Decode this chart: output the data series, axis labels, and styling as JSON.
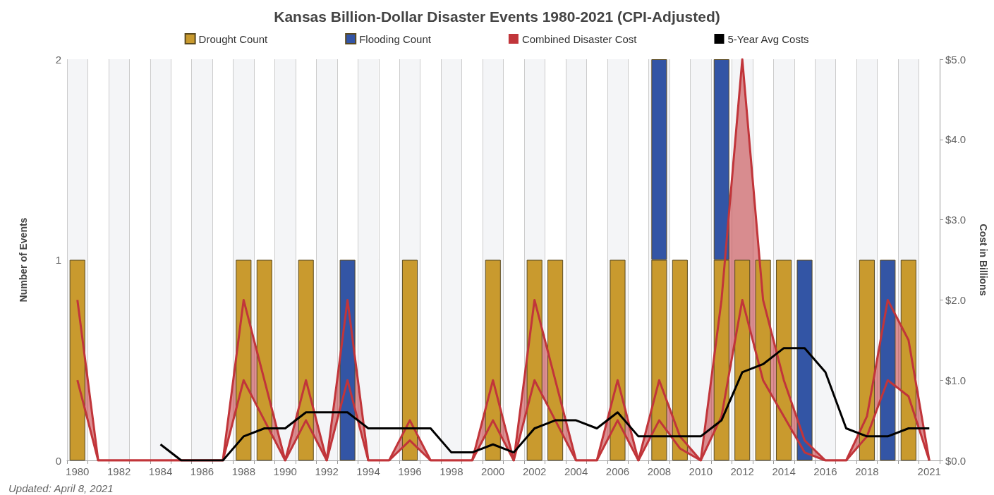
{
  "chart_data": {
    "type": "bar",
    "title": "Kansas Billion-Dollar Disaster Events 1980-2021 (CPI-Adjusted)",
    "ylabel": "Number of Events",
    "y2label": "Cost in Billions",
    "annotations": [
      "Updated: April 8, 2021"
    ],
    "categories": [
      "1980",
      null,
      "1982",
      null,
      "1984",
      null,
      "1986",
      null,
      "1988",
      null,
      "1990",
      null,
      "1992",
      null,
      "1994",
      null,
      "1996",
      null,
      "1998",
      null,
      "2000",
      null,
      "2002",
      null,
      "2004",
      null,
      "2006",
      null,
      "2008",
      null,
      "2010",
      null,
      "2012",
      null,
      "2014",
      null,
      "2016",
      null,
      "2018",
      null,
      null,
      "2021"
    ],
    "stacked": true,
    "series": [
      {
        "name": "Drought Count",
        "color": "#c99a2e",
        "values": [
          1,
          0,
          0,
          0,
          0,
          0,
          0,
          0,
          1,
          1,
          0,
          1,
          0,
          0,
          0,
          0,
          1,
          0,
          0,
          0,
          1,
          0,
          1,
          1,
          0,
          0,
          1,
          0,
          1,
          1,
          0,
          1,
          1,
          1,
          1,
          0,
          0,
          0,
          1,
          0,
          1,
          0
        ]
      },
      {
        "name": "Flooding Count",
        "color": "#3355a5",
        "values": [
          0,
          0,
          0,
          0,
          0,
          0,
          0,
          0,
          0,
          0,
          0,
          0,
          0,
          1,
          0,
          0,
          0,
          0,
          0,
          0,
          0,
          0,
          0,
          0,
          0,
          0,
          0,
          0,
          1,
          0,
          0,
          1,
          0,
          0,
          0,
          1,
          0,
          0,
          0,
          1,
          0,
          0
        ]
      },
      {
        "name": "Combined Disaster Cost",
        "type": "area",
        "axis": "y2",
        "color": "#c1353a",
        "values": [
          2.0,
          0,
          0,
          0,
          0,
          0,
          0,
          0,
          2.0,
          1.0,
          0,
          1.0,
          0,
          2.0,
          0,
          0,
          0.5,
          0,
          0,
          0,
          1.0,
          0,
          2.0,
          1.0,
          0,
          0,
          1.0,
          0,
          1.0,
          0.3,
          0,
          2.0,
          5.0,
          2.0,
          1.0,
          0.25,
          0,
          0,
          0.55,
          2.0,
          1.5,
          0
        ]
      },
      {
        "type": "line",
        "axis": "y2",
        "color": "#c1353a",
        "values": [
          1.0,
          0,
          0,
          0,
          0,
          0,
          0,
          0,
          1.0,
          0.5,
          0,
          0.5,
          0,
          1.0,
          0,
          0,
          0.25,
          0,
          0,
          0,
          0.5,
          0,
          1.0,
          0.5,
          0,
          0,
          0.5,
          0,
          0.5,
          0.15,
          0,
          0.55,
          2.0,
          1.0,
          0.55,
          0.1,
          0,
          0,
          0.3,
          1.0,
          0.8,
          0
        ]
      },
      {
        "name": "5-Year Avg Costs",
        "type": "line",
        "axis": "y2",
        "color": "#000000",
        "values": [
          null,
          null,
          null,
          null,
          0.2,
          0,
          0,
          0,
          0.3,
          0.4,
          0.4,
          0.6,
          0.6,
          0.6,
          0.4,
          0.4,
          0.4,
          0.4,
          0.1,
          0.1,
          0.2,
          0.1,
          0.4,
          0.5,
          0.5,
          0.4,
          0.6,
          0.3,
          0.3,
          0.3,
          0.3,
          0.5,
          1.1,
          1.2,
          1.4,
          1.4,
          1.1,
          0.4,
          0.3,
          0.3,
          0.4,
          0.4
        ]
      }
    ],
    "ylim": [
      0,
      2
    ],
    "yticks": [
      0,
      1,
      2
    ],
    "y2lim": [
      0,
      5
    ],
    "y2ticks": [
      {
        "value": 0,
        "label": "$0.0"
      },
      {
        "value": 1,
        "label": "$1.0"
      },
      {
        "value": 2,
        "label": "$2.0"
      },
      {
        "value": 3,
        "label": "$3.0"
      },
      {
        "value": 4,
        "label": "$4.0"
      },
      {
        "value": 5,
        "label": "$5.0"
      }
    ],
    "grid": true,
    "legend": "top",
    "marker": "none",
    "line_style": "solid"
  }
}
